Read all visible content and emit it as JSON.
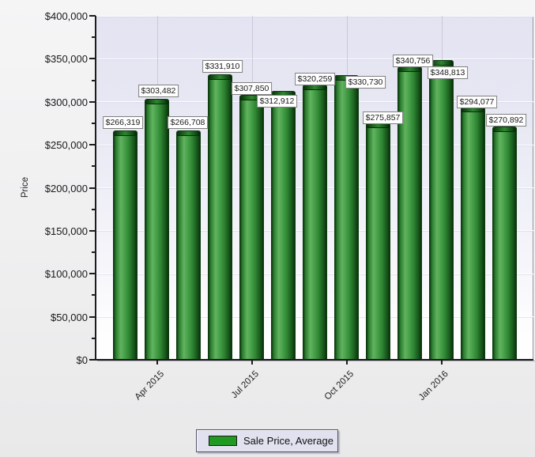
{
  "chart_data": {
    "type": "bar",
    "title": "",
    "xlabel": "",
    "ylabel": "Price",
    "ylim": [
      0,
      400000
    ],
    "ytick_interval": 50000,
    "ytick_minor_interval": 25000,
    "ytick_labels": [
      "$0",
      "$50,000",
      "$100,000",
      "$150,000",
      "$200,000",
      "$250,000",
      "$300,000",
      "$350,000",
      "$400,000"
    ],
    "xtick_labels": [
      "Apr 2015",
      "Jul 2015",
      "Oct 2015",
      "Jan 2016"
    ],
    "xtick_at_bar_index": [
      1,
      4,
      7,
      10
    ],
    "grid": "major",
    "legend_position": "bottom",
    "colors": {
      "bar": "#2f8733",
      "legend_swatch": "#229922",
      "plot_background_top": "#e3e3f2",
      "plot_background_bottom": "#ffffff",
      "gridline_vertical": "#c9c9da"
    },
    "series": [
      {
        "name": "Sale Price, Average",
        "values": [
          266319,
          303482,
          266708,
          331910,
          307850,
          312912,
          320259,
          330730,
          275857,
          340756,
          348813,
          294077,
          270892
        ],
        "data_labels": [
          "$266,319",
          "$303,482",
          "$266,708",
          "$331,910",
          "$307,850",
          "$312,912",
          "$320,259",
          "$330,730",
          "$275,857",
          "$340,756",
          "$348,813",
          "$294,077",
          "$270,892"
        ]
      }
    ]
  }
}
